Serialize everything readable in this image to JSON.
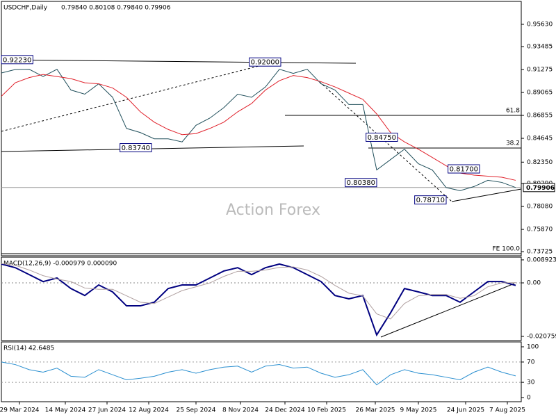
{
  "chart_data": [
    {
      "type": "line",
      "title": "USDCHF,Daily",
      "subtitle": "0.79840 0.80108 0.79840 0.79906",
      "watermark": "Action Forex",
      "x": [
        0,
        10,
        20,
        30,
        40,
        50,
        60,
        70,
        80,
        90,
        100,
        110,
        120,
        130,
        140,
        150,
        160,
        170,
        180,
        190,
        200,
        210,
        220,
        230,
        240,
        250,
        260,
        270,
        280,
        290,
        300,
        310,
        320,
        330,
        340,
        350,
        360,
        370
      ],
      "xlim": [
        0,
        374
      ],
      "xticks": [
        {
          "value": 13,
          "label": "29 Mar 2024"
        },
        {
          "value": 46,
          "label": "14 May 2024"
        },
        {
          "value": 76,
          "label": "27 Jun 2024"
        },
        {
          "value": 106,
          "label": "12 Aug 2024"
        },
        {
          "value": 140,
          "label": "25 Sep 2024"
        },
        {
          "value": 172,
          "label": "8 Nov 2024"
        },
        {
          "value": 204,
          "label": "24 Dec 2024"
        },
        {
          "value": 234,
          "label": "10 Feb 2025"
        },
        {
          "value": 269,
          "label": "26 Mar 2025"
        },
        {
          "value": 300,
          "label": "9 May 2025"
        },
        {
          "value": 334,
          "label": "24 Jun 2025"
        },
        {
          "value": 364,
          "label": "7 Aug 2025"
        }
      ],
      "ylim": [
        0.7333,
        0.9784
      ],
      "yticks": [
        {
          "value": 0.9563,
          "label": "0.95630"
        },
        {
          "value": 0.93485,
          "label": "0.93485"
        },
        {
          "value": 0.91275,
          "label": "0.91275"
        },
        {
          "value": 0.89065,
          "label": "0.89065"
        },
        {
          "value": 0.86855,
          "label": "0.86855"
        },
        {
          "value": 0.84645,
          "label": "0.84645"
        },
        {
          "value": 0.8235,
          "label": "0.82350"
        },
        {
          "value": 0.8029,
          "label": "0.80290"
        },
        {
          "value": 0.7808,
          "label": "0.78080"
        },
        {
          "value": 0.7587,
          "label": "0.75870"
        },
        {
          "value": 0.73725,
          "label": "0.73725"
        }
      ],
      "series": [
        {
          "color": "#1f4e5a",
          "values": [
            0.9094,
            0.9128,
            0.913,
            0.906,
            0.913,
            0.893,
            0.889,
            0.899,
            0.886,
            0.856,
            0.852,
            0.846,
            0.846,
            0.843,
            0.859,
            0.866,
            0.876,
            0.889,
            0.886,
            0.896,
            0.913,
            0.909,
            0.913,
            0.899,
            0.893,
            0.879,
            0.879,
            0.816,
            0.826,
            0.836,
            0.822,
            0.816,
            0.799,
            0.796,
            0.8,
            0.806,
            0.804,
            0.79906
          ]
        },
        {
          "color": "#e0202a",
          "values": [
            0.887,
            0.9,
            0.905,
            0.908,
            0.906,
            0.904,
            0.9,
            0.899,
            0.895,
            0.886,
            0.872,
            0.862,
            0.855,
            0.85,
            0.851,
            0.856,
            0.862,
            0.872,
            0.88,
            0.893,
            0.902,
            0.907,
            0.905,
            0.901,
            0.896,
            0.89,
            0.884,
            0.87,
            0.852,
            0.843,
            0.836,
            0.828,
            0.82,
            0.813,
            0.811,
            0.81,
            0.809,
            0.806
          ]
        }
      ],
      "annotations": [
        {
          "x": 0,
          "value": 0.9223,
          "label": "0.92230"
        },
        {
          "x": 201,
          "value": 0.92,
          "label": "0.92000"
        },
        {
          "x": 108,
          "value": 0.8374,
          "label": "0.83740"
        },
        {
          "x": 285,
          "value": 0.8475,
          "label": "0.84750"
        },
        {
          "x": 270,
          "value": 0.8038,
          "label": "0.80380"
        },
        {
          "x": 344,
          "value": 0.817,
          "label": "0.81700"
        },
        {
          "x": 320,
          "value": 0.7871,
          "label": "0.78710"
        }
      ],
      "levels": [
        {
          "value": 0.8686,
          "label": "61.8"
        },
        {
          "value": 0.8371,
          "label": "38.2"
        },
        {
          "value": 0.7353,
          "label": "FE 100.0"
        }
      ],
      "current": {
        "value": 0.79906,
        "label": "0.79906"
      }
    },
    {
      "type": "line",
      "title": "MACD(12,26,9) -0.000979 0.000090",
      "ylim": [
        -0.02237,
        0.00998
      ],
      "yticks": [
        0.008923,
        {
          "value": 0,
          "label": "0.00"
        },
        -0.020759
      ],
      "series": [
        {
          "color": "#000080",
          "values": [
            0.0073,
            0.0059,
            0.0032,
            0.0005,
            0.0019,
            -0.0022,
            -0.0049,
            -0.0008,
            -0.0035,
            -0.0089,
            -0.0089,
            -0.0075,
            -0.0022,
            -0.0008,
            -0.0008,
            0.0019,
            0.0046,
            0.0059,
            0.0032,
            0.0059,
            0.0073,
            0.0059,
            0.0032,
            0.0005,
            -0.0049,
            -0.0062,
            -0.0049,
            -0.0202,
            -0.0116,
            -0.0022,
            -0.0035,
            -0.0049,
            -0.0049,
            -0.0075,
            -0.0035,
            0.0005,
            0.0005,
            -0.000979
          ]
        },
        {
          "color": "#b0a0a0",
          "values": [
            0.0075,
            0.0068,
            0.005,
            0.0028,
            0.0015,
            0.0005,
            -0.002,
            -0.0025,
            -0.0025,
            -0.005,
            -0.0075,
            -0.008,
            -0.0055,
            -0.003,
            -0.0015,
            0,
            0.0025,
            0.0045,
            0.0045,
            0.005,
            0.006,
            0.0062,
            0.005,
            0.0025,
            -0.001,
            -0.004,
            -0.005,
            -0.012,
            -0.014,
            -0.008,
            -0.005,
            -0.0045,
            -0.0045,
            -0.006,
            -0.005,
            -0.0015,
            0,
            9e-05
          ]
        }
      ]
    },
    {
      "type": "line",
      "title": "RSI(14) 42.6485",
      "ylim": [
        -8.2,
        109.6
      ],
      "yticks": [
        100,
        70,
        30,
        0
      ],
      "levels": [
        70,
        30
      ],
      "series": [
        {
          "color": "#2a8fd0",
          "values": [
            70,
            65,
            55,
            50,
            58,
            42,
            40,
            55,
            45,
            35,
            38,
            42,
            50,
            55,
            48,
            55,
            60,
            62,
            50,
            62,
            65,
            58,
            60,
            48,
            40,
            45,
            55,
            25,
            45,
            55,
            48,
            45,
            40,
            35,
            50,
            60,
            50,
            42.6485
          ]
        }
      ]
    }
  ]
}
